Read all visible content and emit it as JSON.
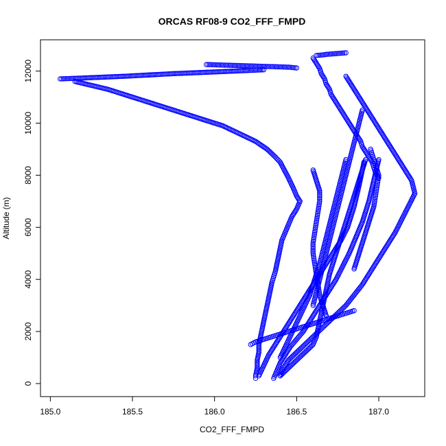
{
  "chart_data": {
    "type": "scatter",
    "title": "ORCAS RF08-9 CO2_FFF_FMPD",
    "xlabel": "CO2_FFF_FMPD",
    "ylabel": "Altitude (m)",
    "xlim": [
      184.94,
      187.28
    ],
    "ylim": [
      -500,
      13200
    ],
    "xticks": [
      185.0,
      185.5,
      186.0,
      186.5,
      187.0
    ],
    "xtick_labels": [
      "185.0",
      "185.5",
      "186.0",
      "186.5",
      "187.0"
    ],
    "yticks": [
      0,
      2000,
      4000,
      6000,
      8000,
      10000,
      12000
    ],
    "ytick_labels": [
      "0",
      "2000",
      "4000",
      "6000",
      "8000",
      "10000",
      "12000"
    ],
    "grid": false,
    "marker": "open-circle",
    "color": "#0000ff",
    "series": [
      {
        "x": [
          186.62,
          186.64,
          186.66,
          186.68,
          186.7,
          186.72,
          186.74,
          186.76,
          186.78,
          186.8
        ],
        "y": [
          12600,
          12610,
          12620,
          12640,
          12650,
          12660,
          12670,
          12680,
          12690,
          12700
        ]
      },
      {
        "x": [
          185.95,
          186.0,
          186.05,
          186.1,
          186.15,
          186.2,
          186.25,
          186.3,
          186.35,
          186.4,
          186.45,
          186.5
        ],
        "y": [
          12250,
          12240,
          12230,
          12220,
          12210,
          12200,
          12190,
          12180,
          12170,
          12160,
          12150,
          12120
        ]
      },
      {
        "x": [
          185.06,
          185.15,
          185.3,
          185.45,
          185.6,
          185.75,
          185.9,
          186.05,
          186.2,
          186.3
        ],
        "y": [
          11700,
          11720,
          11760,
          11800,
          11850,
          11900,
          11940,
          11980,
          12020,
          12050
        ]
      },
      {
        "x": [
          185.15,
          185.35,
          185.5,
          185.65,
          185.8,
          185.95,
          186.05,
          186.15,
          186.25,
          186.32,
          186.37,
          186.4,
          186.45,
          186.48,
          186.5,
          186.52
        ],
        "y": [
          11600,
          11300,
          11000,
          10700,
          10400,
          10100,
          9900,
          9600,
          9300,
          9000,
          8700,
          8500,
          7900,
          7500,
          7200,
          7000
        ]
      },
      {
        "x": [
          186.52,
          186.5,
          186.47,
          186.45,
          186.43,
          186.41,
          186.4,
          186.39,
          186.38,
          186.37,
          186.36,
          186.35,
          186.34,
          186.33,
          186.32,
          186.31,
          186.3,
          186.29,
          186.28,
          186.27,
          186.27,
          186.26,
          186.26,
          186.25,
          186.25
        ],
        "y": [
          7000,
          6700,
          6400,
          6100,
          5800,
          5500,
          5200,
          4900,
          4600,
          4300,
          4100,
          3900,
          3600,
          3300,
          3000,
          2700,
          2400,
          2100,
          1800,
          1500,
          1200,
          900,
          600,
          300,
          200
        ]
      },
      {
        "x": [
          186.6,
          186.62,
          186.64,
          186.65,
          186.67,
          186.68,
          186.7,
          186.71,
          186.73,
          186.75,
          186.77,
          186.79,
          186.81,
          186.83,
          186.85,
          186.87,
          186.89,
          186.9,
          186.92,
          186.94,
          186.96,
          186.97,
          186.98,
          187.0
        ],
        "y": [
          12500,
          12300,
          12100,
          11900,
          11700,
          11500,
          11300,
          11100,
          10900,
          10700,
          10500,
          10300,
          10100,
          9900,
          9700,
          9500,
          9300,
          9100,
          8900,
          8700,
          8500,
          8300,
          8100,
          7900
        ]
      },
      {
        "x": [
          186.8,
          186.85,
          186.9,
          186.95,
          187.0,
          187.05,
          187.1,
          187.15,
          187.2,
          187.22,
          187.18,
          187.14,
          187.1,
          187.05,
          187.0,
          186.95,
          186.9,
          186.85,
          186.8,
          186.75,
          186.7,
          186.65,
          186.6,
          186.55,
          186.5,
          186.45,
          186.42,
          186.4
        ],
        "y": [
          11800,
          11300,
          10800,
          10300,
          9800,
          9300,
          8800,
          8300,
          7800,
          7300,
          6800,
          6300,
          5800,
          5300,
          4800,
          4300,
          3800,
          3400,
          3000,
          2700,
          2400,
          2100,
          1800,
          1500,
          1200,
          900,
          600,
          300
        ]
      },
      {
        "x": [
          186.4,
          186.45,
          186.5,
          186.55,
          186.6,
          186.62,
          186.63,
          186.64,
          186.65,
          186.66,
          186.67,
          186.68,
          186.69,
          186.7,
          186.72,
          186.74,
          186.76,
          186.78,
          186.8,
          186.82,
          186.84,
          186.86,
          186.88,
          186.9,
          186.92
        ],
        "y": [
          300,
          600,
          900,
          1200,
          1500,
          1800,
          2100,
          2400,
          2700,
          3000,
          3300,
          3600,
          3900,
          4200,
          4600,
          5000,
          5400,
          5800,
          6200,
          6600,
          7000,
          7400,
          7800,
          8200,
          8600
        ]
      },
      {
        "x": [
          186.36,
          186.38,
          186.4,
          186.43,
          186.46,
          186.5,
          186.54,
          186.58,
          186.62,
          186.66,
          186.7,
          186.74,
          186.78,
          186.82,
          186.86,
          186.9,
          186.94,
          186.97,
          187.0
        ],
        "y": [
          200,
          500,
          800,
          1100,
          1400,
          1700,
          2000,
          2400,
          2800,
          3200,
          3600,
          4000,
          4500,
          5000,
          5600,
          6200,
          7000,
          7800,
          8600
        ]
      },
      {
        "x": [
          186.27,
          186.3,
          186.33,
          186.37,
          186.41,
          186.45,
          186.49,
          186.53,
          186.57,
          186.61,
          186.65,
          186.69,
          186.73,
          186.77,
          186.81,
          186.85,
          186.88,
          186.91
        ],
        "y": [
          300,
          700,
          1100,
          1500,
          1900,
          2300,
          2700,
          3100,
          3500,
          3900,
          4300,
          4700,
          5100,
          5500,
          6000,
          6800,
          7600,
          8500
        ]
      },
      {
        "x": [
          186.6,
          186.62,
          186.64,
          186.64,
          186.63,
          186.62,
          186.61,
          186.6,
          186.6,
          186.61,
          186.62,
          186.63,
          186.64,
          186.66,
          186.68
        ],
        "y": [
          8200,
          7800,
          7400,
          7000,
          6600,
          6200,
          5800,
          5400,
          5000,
          4600,
          4200,
          3800,
          3400,
          3000,
          2600
        ]
      },
      {
        "x": [
          186.8,
          186.78,
          186.76,
          186.74,
          186.72,
          186.7,
          186.68,
          186.66,
          186.64,
          186.62,
          186.6,
          186.58,
          186.55,
          186.52,
          186.49,
          186.46,
          186.43,
          186.4
        ],
        "y": [
          8600,
          8100,
          7600,
          7100,
          6600,
          6100,
          5600,
          5100,
          4600,
          4200,
          3800,
          3400,
          3000,
          2600,
          2200,
          1800,
          1400,
          1000
        ]
      },
      {
        "x": [
          186.22,
          186.25,
          186.3,
          186.35,
          186.4,
          186.45,
          186.5,
          186.55,
          186.6,
          186.65,
          186.7,
          186.75,
          186.8,
          186.85
        ],
        "y": [
          1500,
          1600,
          1700,
          1800,
          1900,
          2000,
          2100,
          2200,
          2300,
          2400,
          2500,
          2600,
          2700,
          2800
        ]
      },
      {
        "x": [
          186.9,
          186.88,
          186.86,
          186.84,
          186.82,
          186.8,
          186.78,
          186.76,
          186.74,
          186.72,
          186.7,
          186.68,
          186.66,
          186.64,
          186.62,
          186.6
        ],
        "y": [
          10500,
          10000,
          9500,
          9000,
          8500,
          8000,
          7500,
          7000,
          6500,
          6000,
          5500,
          5000,
          4500,
          4000,
          3500,
          3000
        ]
      },
      {
        "x": [
          186.95,
          186.96,
          186.97,
          186.98,
          186.99,
          187.0,
          186.99,
          186.98,
          186.97,
          186.95,
          186.93,
          186.91,
          186.89,
          186.87,
          186.85
        ],
        "y": [
          9000,
          8800,
          8600,
          8400,
          8200,
          8000,
          7600,
          7200,
          6800,
          6400,
          6000,
          5600,
          5200,
          4800,
          4400
        ]
      }
    ]
  }
}
